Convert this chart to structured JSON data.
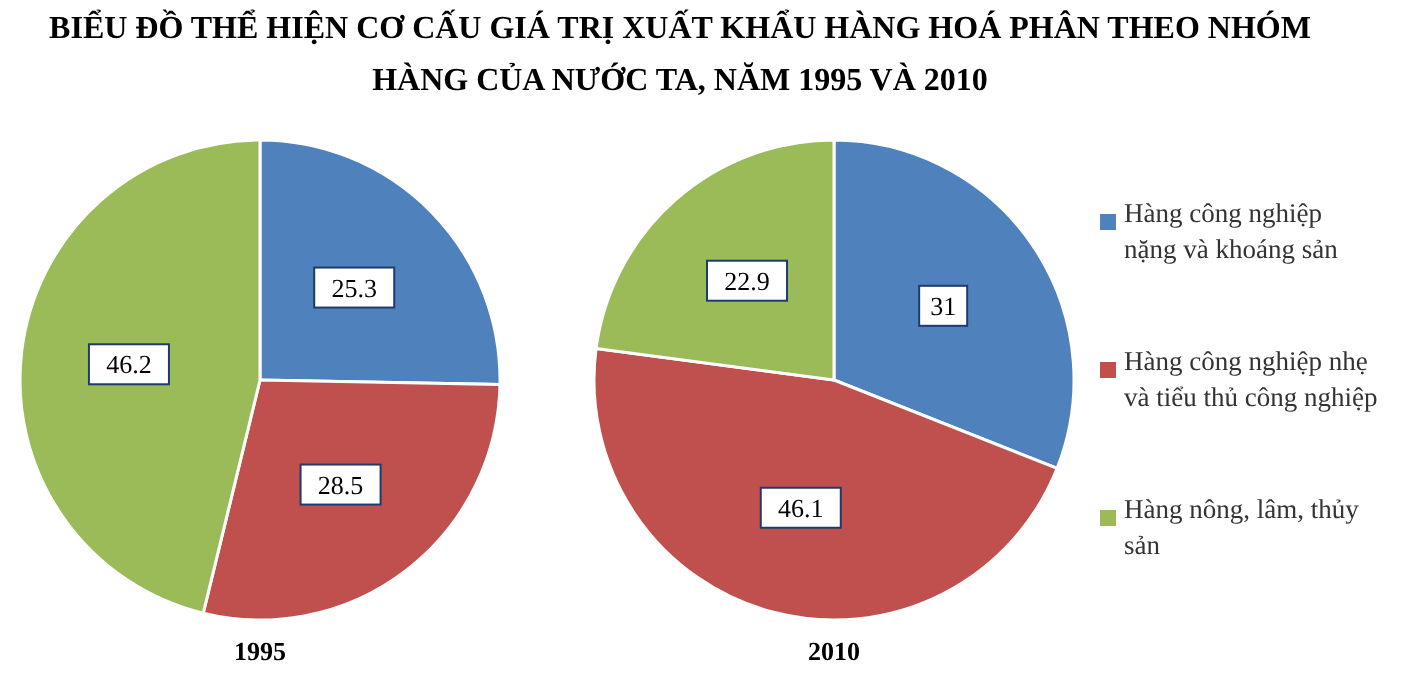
{
  "chart_data": [
    {
      "type": "pie",
      "title": "BIỂU ĐỒ THỂ HIỆN CƠ CẤU GIÁ TRỊ XUẤT KHẨU HÀNG HOÁ PHÂN THEO NHÓM HÀNG CỦA NƯỚC TA, NĂM 1995 VÀ 2010",
      "xlabel": "1995",
      "categories": [
        null,
        null,
        null
      ],
      "values": [
        25.3,
        28.5,
        46.2
      ],
      "colors": [
        "#4f81bd",
        "#c0504d",
        "#9bbb59"
      ],
      "data_labels": true
    },
    {
      "type": "pie",
      "xlabel": "2010",
      "categories": [
        "Hàng công nghiệp nặng và khoáng sản",
        "Hàng công nghiệp nhẹ và tiểu thủ công nghiệp",
        "Hàng nông, lâm, thủy sản"
      ],
      "values": [
        31,
        46.1,
        22.9
      ],
      "colors": [
        "#4f81bd",
        "#c0504d",
        "#9bbb59"
      ],
      "data_labels": true,
      "legend": "right"
    }
  ]
}
